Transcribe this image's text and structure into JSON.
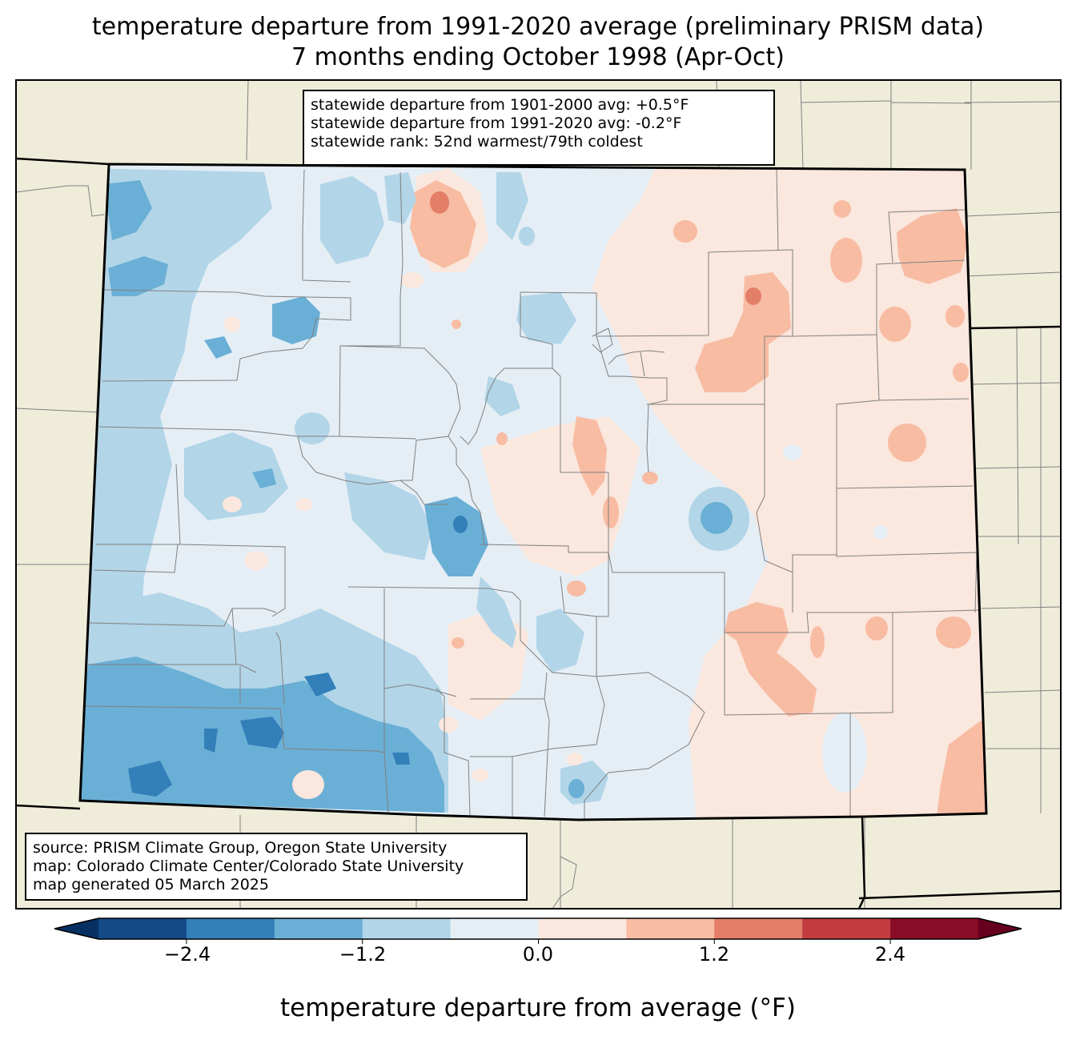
{
  "title_line1": "temperature departure from 1991-2020 average (preliminary PRISM data)",
  "title_line2": "7 months ending October 1998 (Apr-Oct)",
  "stats": [
    "statewide departure from 1901-2000 avg: +0.5°F",
    "statewide departure from 1991-2020 avg: -0.2°F",
    "statewide rank: 52nd warmest/79th coldest"
  ],
  "source": [
    "source: PRISM Climate Group, Oregon State University",
    "map: Colorado Climate Center/Colorado State University",
    "map generated 05 March 2025"
  ],
  "colorbar": {
    "label": "temperature departure from average (°F)",
    "ticks": [
      "−2.4",
      "−1.2",
      "0.0",
      "1.2",
      "2.4"
    ],
    "bins": [
      {
        "range": "< -3.0",
        "color": "#053061"
      },
      {
        "range": "-3.0 to -2.4",
        "color": "#134a87"
      },
      {
        "range": "-2.4 to -1.8",
        "color": "#327fba"
      },
      {
        "range": "-1.8 to -1.2",
        "color": "#6aafd5"
      },
      {
        "range": "-1.2 to -0.6",
        "color": "#b2d5e8"
      },
      {
        "range": "-0.6 to 0.0",
        "color": "#e5eef5"
      },
      {
        "range": "0.0 to 0.6",
        "color": "#fae7dd"
      },
      {
        "range": "0.6 to 1.2",
        "color": "#f8bca3"
      },
      {
        "range": "1.2 to 1.8",
        "color": "#e37e67"
      },
      {
        "range": "1.8 to 2.4",
        "color": "#c23b3e"
      },
      {
        "range": "2.4 to 3.0",
        "color": "#880c25"
      },
      {
        "range": "> 3.0",
        "color": "#67001f"
      }
    ]
  },
  "colors": {
    "background_land": "#efedda",
    "county_lines": "#808080",
    "state_border": "#000000"
  }
}
